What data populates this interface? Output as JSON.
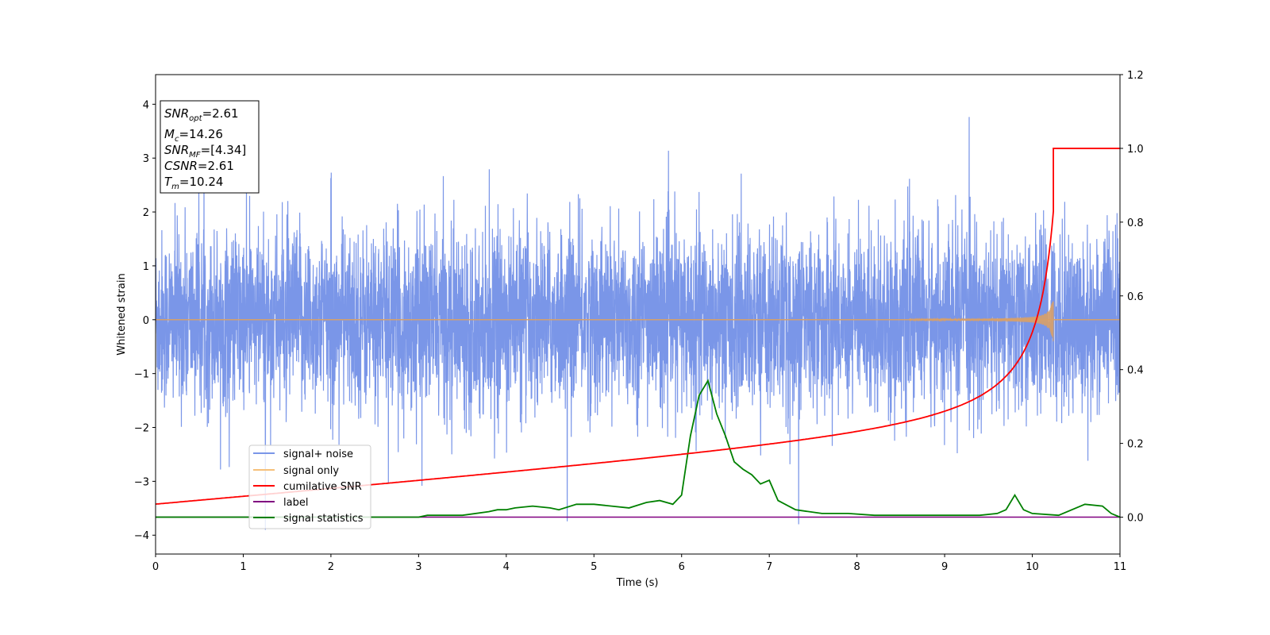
{
  "chart_data": {
    "type": "line",
    "xlabel": "Time (s)",
    "ylabel": "Whitened strain",
    "xlim": [
      0,
      11
    ],
    "ylim": [
      -4.35,
      4.55
    ],
    "y2lim": [
      -0.1,
      1.2
    ],
    "xticks": [
      0,
      1,
      2,
      3,
      4,
      5,
      6,
      7,
      8,
      9,
      10,
      11
    ],
    "yticks": [
      -4,
      -3,
      -2,
      -1,
      0,
      1,
      2,
      3,
      4
    ],
    "y2ticks": [
      "0.0",
      "0.2",
      "0.4",
      "0.6",
      "0.8",
      "1.0",
      "1.2"
    ],
    "grid": false,
    "legend_placement": "lower-left",
    "legend": [
      "signal+ noise",
      "signal only",
      "cumilative SNR",
      "label",
      "signal statistics"
    ],
    "colors": {
      "signal_noise": "#7a96e8",
      "signal_only": "#d9a067",
      "cumulative_snr": "#ff0000",
      "label": "#800080",
      "signal_statistics": "#008000"
    },
    "annotation": {
      "snr_opt": "=2.61",
      "mc": "=14.26",
      "snr_mf": "=[4.34]",
      "csnr": "=2.61",
      "tm": "=10.24"
    },
    "series": [
      {
        "name": "signal+ noise",
        "axis": "left",
        "description_values": {
          "sample_rate_hz": 1024,
          "std_approx": 0.9,
          "min": -3.93,
          "max": 4.18
        }
      },
      {
        "name": "signal only",
        "axis": "left",
        "chirp": {
          "t_merger": 10.24,
          "peak_amplitude": 0.55
        }
      },
      {
        "name": "cumilative SNR",
        "axis": "right",
        "x": [
          0,
          1,
          2,
          3,
          4,
          5,
          6,
          7,
          8,
          9,
          9.5,
          9.8,
          10.0,
          10.1,
          10.2,
          10.24,
          11
        ],
        "y": [
          0.025,
          0.045,
          0.065,
          0.085,
          0.105,
          0.125,
          0.15,
          0.18,
          0.22,
          0.29,
          0.36,
          0.45,
          0.57,
          0.68,
          0.86,
          1.0,
          1.0
        ]
      },
      {
        "name": "label",
        "axis": "right",
        "x": [
          0,
          11
        ],
        "y": [
          0,
          0
        ]
      },
      {
        "name": "signal statistics",
        "axis": "right",
        "x": [
          0,
          0.5,
          1,
          1.5,
          2,
          2.5,
          3,
          3.1,
          3.5,
          3.8,
          3.9,
          4.0,
          4.1,
          4.3,
          4.5,
          4.6,
          4.8,
          5.0,
          5.2,
          5.4,
          5.6,
          5.75,
          5.9,
          6.0,
          6.1,
          6.2,
          6.3,
          6.4,
          6.5,
          6.6,
          6.7,
          6.8,
          6.9,
          7.0,
          7.1,
          7.3,
          7.6,
          7.9,
          8.2,
          8.6,
          9.0,
          9.4,
          9.6,
          9.7,
          9.8,
          9.9,
          10.0,
          10.3,
          10.6,
          10.8,
          10.9,
          11.0
        ],
        "y": [
          0.0,
          0.0,
          0.0,
          0.0,
          0.0,
          0.0,
          0.0,
          0.005,
          0.005,
          0.015,
          0.02,
          0.02,
          0.025,
          0.03,
          0.025,
          0.02,
          0.035,
          0.035,
          0.03,
          0.025,
          0.04,
          0.045,
          0.035,
          0.06,
          0.22,
          0.33,
          0.37,
          0.28,
          0.22,
          0.15,
          0.13,
          0.115,
          0.09,
          0.1,
          0.045,
          0.02,
          0.01,
          0.01,
          0.005,
          0.005,
          0.005,
          0.005,
          0.01,
          0.02,
          0.06,
          0.02,
          0.01,
          0.005,
          0.035,
          0.03,
          0.01,
          0.0
        ]
      }
    ]
  }
}
